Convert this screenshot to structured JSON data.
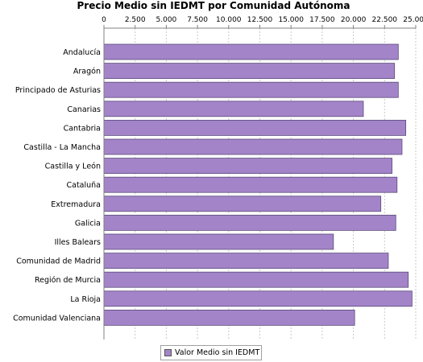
{
  "chart_data": {
    "type": "bar",
    "orientation": "horizontal",
    "title": "Precio Medio sin IEDMT por Comunidad Autónoma",
    "categories": [
      "Andalucía",
      "Aragón",
      "Principado de Asturias",
      "Canarias",
      "Cantabria",
      "Castilla - La Mancha",
      "Castilla y León",
      "Cataluña",
      "Extremadura",
      "Galicia",
      "Illes Balears",
      "Comunidad de Madrid",
      "Región de Murcia",
      "La Rioja",
      "Comunidad Valenciana"
    ],
    "series": [
      {
        "name": "Valor Medio sin IEDMT",
        "color": "#a384c9",
        "values": [
          23600,
          23300,
          23600,
          20800,
          24200,
          23900,
          23100,
          23500,
          22200,
          23400,
          18400,
          22800,
          24400,
          24700,
          20100
        ]
      }
    ],
    "xticks": [
      "0",
      "2.500",
      "5.000",
      "7.500",
      "10.000",
      "12.500",
      "15.000",
      "17.500",
      "20.000",
      "22.500",
      "25.000"
    ],
    "xlim": [
      0,
      25000
    ],
    "x_axis_position": "top",
    "grid": true,
    "legend_position": "bottom"
  },
  "legend": {
    "label": "Valor Medio sin IEDMT",
    "color": "#a384c9"
  }
}
